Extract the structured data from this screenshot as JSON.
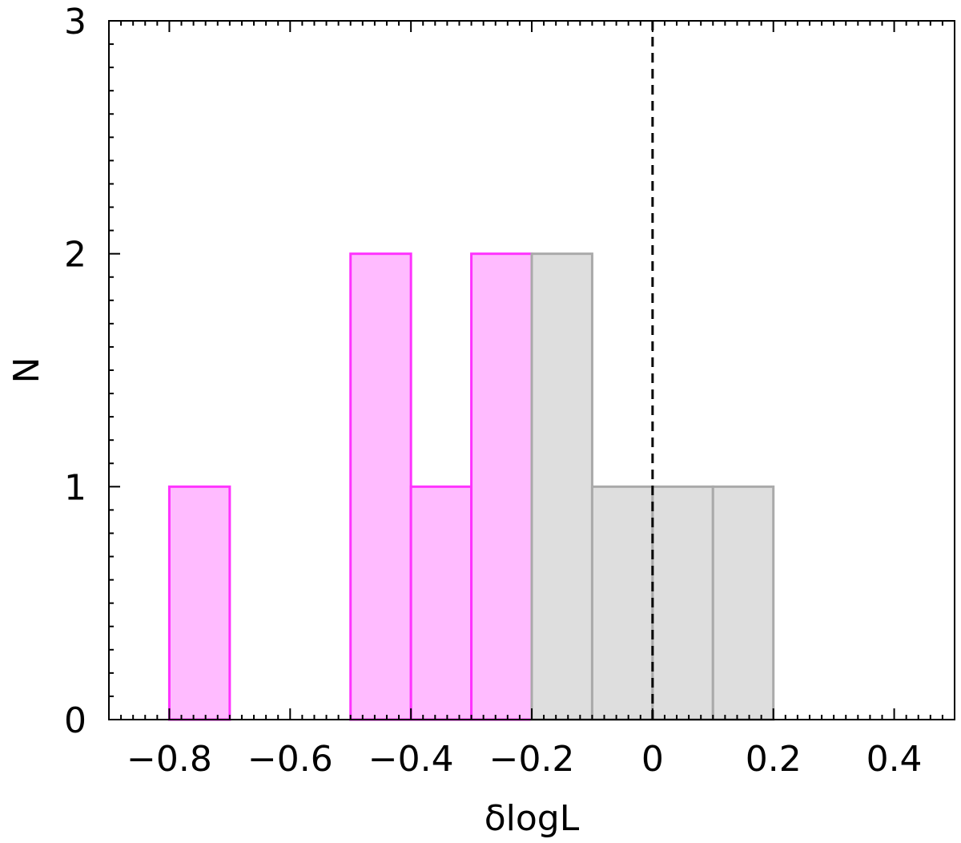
{
  "chart_data": {
    "type": "bar",
    "title": "",
    "xlabel": "δlogL",
    "ylabel": "N",
    "xlim": [
      -0.9,
      0.5
    ],
    "ylim": [
      0,
      3
    ],
    "bin_width": 0.1,
    "x_ticks": [
      -0.8,
      -0.6,
      -0.4,
      -0.2,
      0,
      0.2,
      0.4
    ],
    "x_tick_labels": [
      "−0.8",
      "−0.6",
      "−0.4",
      "−0.2",
      "0",
      "0.2",
      "0.4"
    ],
    "y_ticks": [
      0,
      1,
      2,
      3
    ],
    "y_tick_labels": [
      "0",
      "1",
      "2",
      "3"
    ],
    "grid": false,
    "legend": false,
    "reference_line": {
      "x": 0,
      "style": "dashed",
      "color": "#000000"
    },
    "series": [
      {
        "color": "#ff33ff",
        "fill": "#ffbbff",
        "bins": [
          {
            "start": -0.8,
            "end": -0.7,
            "count": 1
          },
          {
            "start": -0.5,
            "end": -0.4,
            "count": 2
          },
          {
            "start": -0.4,
            "end": -0.3,
            "count": 1
          },
          {
            "start": -0.3,
            "end": -0.2,
            "count": 2
          }
        ]
      },
      {
        "color": "#aaaaaa",
        "fill": "#dedede",
        "bins": [
          {
            "start": -0.2,
            "end": -0.1,
            "count": 2
          },
          {
            "start": -0.1,
            "end": 0.0,
            "count": 1
          },
          {
            "start": 0.0,
            "end": 0.1,
            "count": 1
          },
          {
            "start": 0.1,
            "end": 0.2,
            "count": 1
          }
        ]
      }
    ]
  }
}
